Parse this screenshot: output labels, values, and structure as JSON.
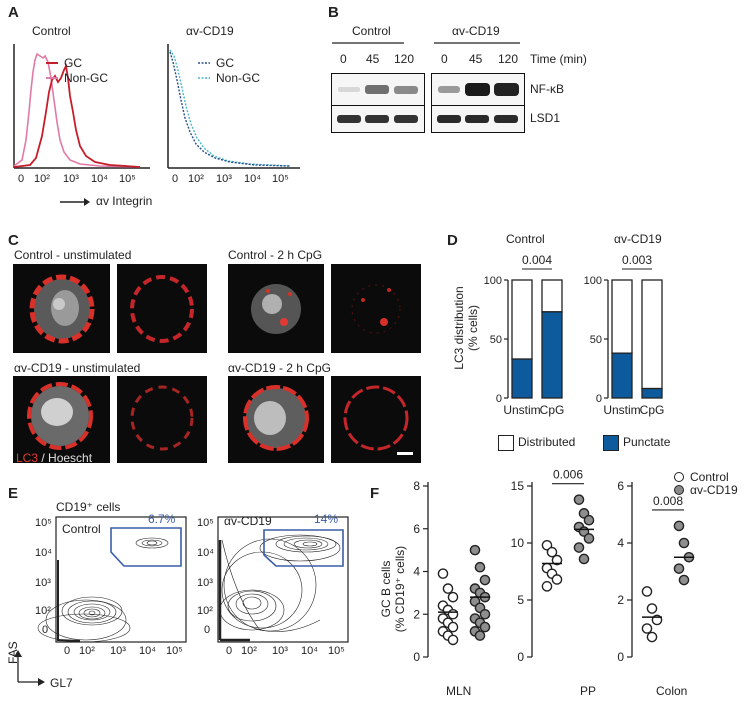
{
  "panels": {
    "a": "A",
    "b": "B",
    "c": "C",
    "d": "D",
    "e": "E",
    "f": "F"
  },
  "panelA": {
    "control_title": "Control",
    "cd19_title": "αv-CD19",
    "legend_gc": "GC",
    "legend_nongc": "Non-GC",
    "xticks": [
      "0",
      "10²",
      "10³",
      "10⁴",
      "10⁵"
    ],
    "xaxis_label": "αv Integrin",
    "colors": {
      "gc_control": "#c41e2a",
      "nongc_control": "#e07aa6",
      "gc_cd19": "#2a4f8a",
      "nongc_cd19": "#47b7c9"
    }
  },
  "panelB": {
    "control_title": "Control",
    "cd19_title": "αv-CD19",
    "time_label": "Time (min)",
    "times": [
      "0",
      "45",
      "120",
      "0",
      "45",
      "120"
    ],
    "row1": "NF-κB",
    "row2": "LSD1"
  },
  "panelC": {
    "titles": [
      "Control - unstimulated",
      "Control - 2 h CpG",
      "αv-CD19 - unstimulated",
      "αv-CD19 - 2 h CpG"
    ],
    "stain_lc3": "LC3",
    "stain_sep": " / ",
    "stain_hoechst": "Hoescht"
  },
  "panelD": {
    "title_control": "Control",
    "title_cd19": "αv-CD19",
    "ylabel": "LC3 distribution\n(% cells)",
    "pvalues": [
      "0.004",
      "0.003"
    ],
    "xcats": [
      "Unstim",
      "CpG"
    ],
    "legend": [
      "Distributed",
      "Punctate"
    ],
    "colors": {
      "punctate": "#0d5a9c",
      "distributed": "#ffffff"
    }
  },
  "panelE": {
    "header": "CD19⁺ cells",
    "control_label": "Control",
    "cd19_label": "αv-CD19",
    "gate_control": "6.7%",
    "gate_cd19": "14%",
    "yaxis": "FAS",
    "xaxis": "GL7",
    "yticks": [
      "10⁵",
      "10⁴",
      "10³",
      "10²",
      "0"
    ],
    "xticks": [
      "0",
      "10²",
      "10³",
      "10⁴",
      "10⁵"
    ],
    "gate_color": "#3a5ea8"
  },
  "panelF": {
    "legend_control": "Control",
    "legend_cd19": "αv-CD19",
    "ylabel": "GC B cells\n(% CD19⁺ cells)",
    "groups": [
      "MLN",
      "PP",
      "Colon"
    ],
    "pvalues": [
      "0.006",
      "0.008"
    ]
  },
  "chart_data": [
    {
      "type": "bar",
      "title": "Control",
      "categories": [
        "Unstim",
        "CpG"
      ],
      "series": [
        {
          "name": "Punctate",
          "values": [
            33,
            73
          ]
        },
        {
          "name": "Distributed",
          "values": [
            67,
            27
          ]
        }
      ],
      "stacked": true,
      "ylabel": "LC3 distribution (% cells)",
      "ylim": [
        0,
        100
      ],
      "yticks": [
        0,
        50,
        100
      ],
      "pvalue": "0.004"
    },
    {
      "type": "bar",
      "title": "αv-CD19",
      "categories": [
        "Unstim",
        "CpG"
      ],
      "series": [
        {
          "name": "Punctate",
          "values": [
            38,
            8
          ]
        },
        {
          "name": "Distributed",
          "values": [
            62,
            92
          ]
        }
      ],
      "stacked": true,
      "ylabel": "LC3 distribution (% cells)",
      "ylim": [
        0,
        100
      ],
      "yticks": [
        0,
        50,
        100
      ],
      "pvalue": "0.003"
    },
    {
      "type": "scatter",
      "title": "MLN",
      "ylabel": "GC B cells (% CD19⁺ cells)",
      "ylim": [
        0,
        8
      ],
      "yticks": [
        0,
        2,
        4,
        6,
        8
      ],
      "series": [
        {
          "name": "Control",
          "values": [
            3.9,
            3.2,
            2.8,
            2.4,
            2.2,
            2.0,
            1.8,
            1.6,
            1.4,
            1.2,
            1.0,
            0.8
          ],
          "mean": 2.1
        },
        {
          "name": "αv-CD19",
          "values": [
            5.0,
            4.2,
            3.6,
            3.2,
            3.0,
            2.8,
            2.6,
            2.3,
            2.0,
            1.8,
            1.6,
            1.4,
            1.2,
            1.0
          ],
          "mean": 2.8
        }
      ]
    },
    {
      "type": "scatter",
      "title": "PP",
      "ylim": [
        0,
        15
      ],
      "yticks": [
        0,
        5,
        10,
        15
      ],
      "pvalue": "0.006",
      "series": [
        {
          "name": "Control",
          "values": [
            9.8,
            9.2,
            8.5,
            7.8,
            7.3,
            6.8,
            6.2
          ],
          "mean": 8.2
        },
        {
          "name": "αv-CD19",
          "values": [
            13.8,
            12.6,
            12.0,
            11.4,
            11.0,
            10.4,
            9.6,
            8.6
          ],
          "mean": 11.2
        }
      ]
    },
    {
      "type": "scatter",
      "title": "Colon",
      "ylim": [
        0,
        6
      ],
      "yticks": [
        0,
        2,
        4,
        6
      ],
      "pvalue": "0.008",
      "series": [
        {
          "name": "Control",
          "values": [
            2.3,
            1.7,
            1.3,
            1.0,
            0.7
          ],
          "mean": 1.4
        },
        {
          "name": "αv-CD19",
          "values": [
            4.6,
            4.0,
            3.5,
            3.1,
            2.7
          ],
          "mean": 3.5
        }
      ]
    }
  ]
}
